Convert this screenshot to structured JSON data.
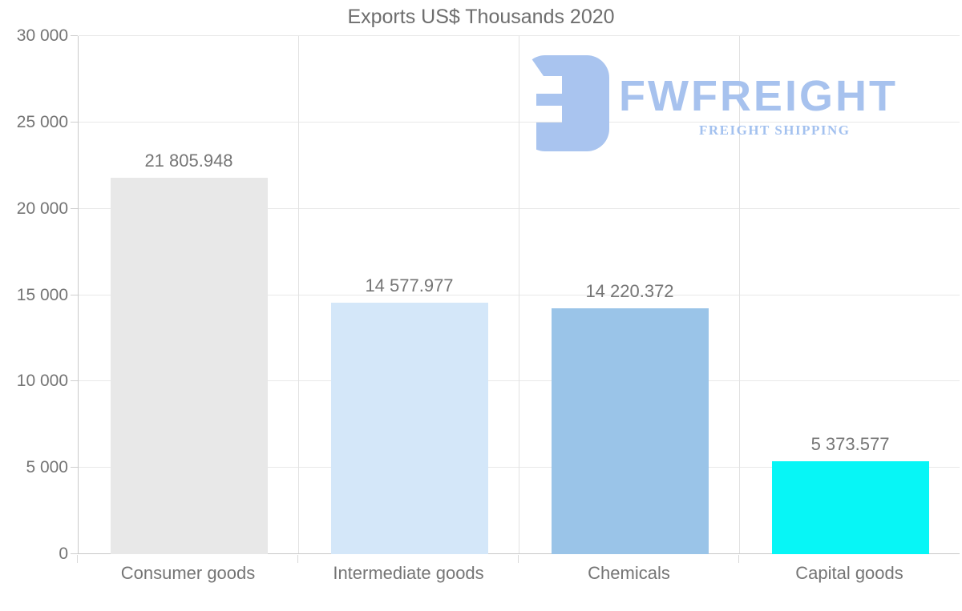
{
  "title": "Exports US$ Thousands 2020",
  "watermark": {
    "brand": "FWFREIGHT",
    "tagline": "FREIGHT SHIPPING",
    "color": "#a7c2ee"
  },
  "chart_data": {
    "type": "bar",
    "title": "Exports US$ Thousands 2020",
    "categories": [
      "Consumer goods",
      "Intermediate goods",
      "Chemicals",
      "Capital goods"
    ],
    "values": [
      21805.948,
      14577.977,
      14220.372,
      5373.577
    ],
    "value_labels": [
      "21 805.948",
      "14 577.977",
      "14 220.372",
      "5 373.577"
    ],
    "bar_colors": [
      "#e8e8e8",
      "#d4e7f9",
      "#9ac4e8",
      "#07f6f6"
    ],
    "xlabel": "",
    "ylabel": "",
    "ylim": [
      0,
      30000
    ],
    "ytick_step": 5000,
    "ytick_labels": [
      "0",
      "5 000",
      "10 000",
      "15 000",
      "20 000",
      "25 000",
      "30 000"
    ],
    "grid": true,
    "legend": false
  },
  "colors": {
    "text": "#757575",
    "title_text": "#6e6e6e",
    "axis": "#c9c9c9",
    "grid_horizontal": "#e8e8e8",
    "grid_vertical": "#e2e2e2",
    "background": "#ffffff"
  }
}
